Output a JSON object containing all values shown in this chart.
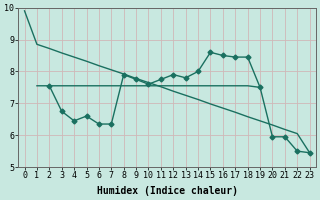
{
  "xlabel": "Humidex (Indice chaleur)",
  "background_color": "#c8e8e0",
  "line_color": "#1a7060",
  "grid_color": "#d0b8b8",
  "xlim_min": -0.5,
  "xlim_max": 23.5,
  "ylim_min": 5,
  "ylim_max": 10,
  "yticks": [
    5,
    6,
    7,
    8,
    9,
    10
  ],
  "xticks": [
    0,
    1,
    2,
    3,
    4,
    5,
    6,
    7,
    8,
    9,
    10,
    11,
    12,
    13,
    14,
    15,
    16,
    17,
    18,
    19,
    20,
    21,
    22,
    23
  ],
  "line1_x": [
    0,
    1,
    2,
    3,
    4,
    5,
    6,
    7,
    8,
    9,
    10,
    11,
    12,
    13,
    14,
    15,
    16,
    17,
    18,
    19,
    20,
    21,
    22,
    23
  ],
  "line1_y": [
    9.9,
    8.85,
    8.72,
    8.58,
    8.45,
    8.32,
    8.18,
    8.05,
    7.92,
    7.78,
    7.65,
    7.52,
    7.38,
    7.25,
    7.12,
    6.98,
    6.85,
    6.72,
    6.58,
    6.45,
    6.32,
    6.18,
    6.05,
    5.45
  ],
  "line2_x": [
    2,
    3,
    4,
    5,
    6,
    7,
    8,
    9,
    10,
    11,
    12,
    13,
    14,
    15,
    16,
    17,
    18,
    19,
    20,
    21,
    22,
    23
  ],
  "line2_y": [
    7.55,
    6.75,
    6.45,
    6.6,
    6.35,
    6.35,
    7.9,
    7.75,
    7.6,
    7.75,
    7.9,
    7.8,
    8.0,
    8.6,
    8.5,
    8.45,
    8.45,
    7.5,
    5.95,
    5.95,
    5.5,
    5.45
  ],
  "line3_x": [
    1,
    2,
    3,
    4,
    5,
    6,
    7,
    8,
    9,
    10,
    11,
    12,
    13,
    14,
    15,
    16,
    17,
    18,
    19
  ],
  "line3_y": [
    7.55,
    7.55,
    7.55,
    7.55,
    7.55,
    7.55,
    7.55,
    7.55,
    7.55,
    7.55,
    7.55,
    7.55,
    7.55,
    7.55,
    7.55,
    7.55,
    7.55,
    7.55,
    7.5
  ],
  "marker_size": 2.5,
  "line_width": 1.0,
  "font_family": "monospace",
  "xlabel_fontsize": 7,
  "tick_fontsize": 6
}
